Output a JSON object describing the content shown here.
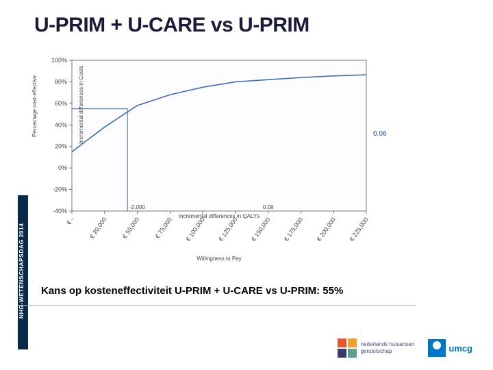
{
  "title": "U-PRIM + U-CARE vs U-PRIM",
  "sidebar_text": "NHG-WETENSCHAPSDAG 2014",
  "caption": "Kans op kosteneffectiviteit U-PRIM + U-CARE vs U-PRIM: 55%",
  "chart": {
    "type": "line",
    "background_color": "#fdfdff",
    "axis_color": "#555555",
    "grid": false,
    "curve_color": "#3b6fb6",
    "curve_width": 1.6,
    "marker_line_color": "#3b6fb6",
    "right_label": "0.06",
    "right_label_color": "#0a4aa0",
    "y_ticks": [
      {
        "v": -40,
        "label": "-40%"
      },
      {
        "v": -20,
        "label": "-20%"
      },
      {
        "v": 0,
        "label": "0%"
      },
      {
        "v": 20,
        "label": "20%"
      },
      {
        "v": 40,
        "label": "40%"
      },
      {
        "v": 60,
        "label": "60%"
      },
      {
        "v": 80,
        "label": "80%"
      },
      {
        "v": 100,
        "label": "100%"
      }
    ],
    "ylim": [
      -40,
      100
    ],
    "ylabel_outer": "Percentage cost-effective",
    "ylabel_inner": "Incremental differences in Costs",
    "x_rot_ticks": [
      "€ -",
      "€ 20,000",
      "€ 50,000",
      "€ 75,000",
      "€ 100,000",
      "€ 125,000",
      "€ 150,000",
      "€ 175,000",
      "€ 200,000",
      "€ 225,000"
    ],
    "x_inner_ticks": [
      "",
      "",
      "-2,000",
      "",
      "",
      "",
      "0.08",
      "",
      "",
      ""
    ],
    "xlabel_inner": "Incremental differences in QALYs",
    "xlabel_bottom": "Willingness to Pay",
    "curve_points": [
      {
        "x": 0,
        "y": 15
      },
      {
        "x": 1,
        "y": 38
      },
      {
        "x": 2,
        "y": 58
      },
      {
        "x": 3,
        "y": 68
      },
      {
        "x": 4,
        "y": 75
      },
      {
        "x": 5,
        "y": 80
      },
      {
        "x": 6,
        "y": 82
      },
      {
        "x": 7,
        "y": 84
      },
      {
        "x": 8,
        "y": 85.5
      },
      {
        "x": 9,
        "y": 86.5
      }
    ],
    "marker_y": 55,
    "marker_x": 1.7
  },
  "logos": {
    "nhg_colors": [
      "#e4572e",
      "#f0a030",
      "#3a3a6a",
      "#5aa08a"
    ],
    "nhg_text_line1": "nederlands huisartsen",
    "nhg_text_line2": "genootschap",
    "umcg": "umcg",
    "umcg_color": "#0077c8"
  }
}
